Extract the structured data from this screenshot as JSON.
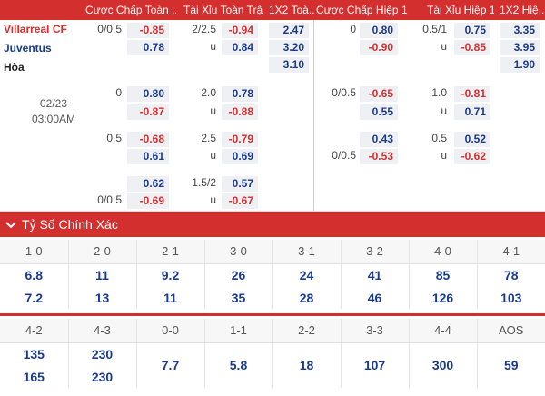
{
  "headers": [
    "Cược Chấp Toàn ...",
    "Tài Xỉu Toàn Trận",
    "1X2 Toà...",
    "Cược Chấp Hiệp 1",
    "Tài Xỉu Hiệp 1",
    "1X2 Hiệ..."
  ],
  "teams": {
    "home": "Villarreal CF",
    "away": "Juventus",
    "draw": "Hòa"
  },
  "date": "02/23",
  "time": "03:00AM",
  "rows": [
    {
      "ah_ft_line": "0/0.5",
      "ah_ft_v": "-0.85",
      "ou_ft_line": "2/2.5",
      "ou_ft_v": "-0.94",
      "x12_ft": "2.47",
      "ah_h1_line": "0",
      "ah_h1_v": "0.80",
      "ou_h1_line": "0.5/1",
      "ou_h1_v": "0.75",
      "x12_h1": "3.35"
    },
    {
      "ah_ft_v": "0.78",
      "ou_ft_line": "u",
      "ou_ft_v": "0.84",
      "x12_ft": "3.20",
      "ah_h1_v": "-0.90",
      "ou_h1_line": "u",
      "ou_h1_v": "-0.85",
      "x12_h1": "3.95"
    },
    {
      "x12_ft": "3.10",
      "x12_h1": "1.90"
    },
    {
      "ah_ft_line": "0",
      "ah_ft_v": "0.80",
      "ou_ft_line": "2.0",
      "ou_ft_v": "0.78",
      "ah_h1_line": "0/0.5",
      "ah_h1_v": "-0.65",
      "ou_h1_line": "1.0",
      "ou_h1_v": "-0.81"
    },
    {
      "ah_ft_v": "-0.87",
      "ou_ft_line": "u",
      "ou_ft_v": "-0.88",
      "ah_h1_v": "0.55",
      "ou_h1_line": "u",
      "ou_h1_v": "0.71"
    },
    {
      "ah_ft_line": "0.5",
      "ah_ft_v": "-0.68",
      "ou_ft_line": "2.5",
      "ou_ft_v": "-0.79",
      "ah_h1_v": "0.43",
      "ou_h1_line": "0.5",
      "ou_h1_v": "0.52"
    },
    {
      "ah_ft_v": "0.61",
      "ou_ft_line": "u",
      "ou_ft_v": "0.69",
      "ah_h1_line": "0/0.5",
      "ah_h1_v": "-0.53",
      "ou_h1_line": "u",
      "ou_h1_v": "-0.62"
    },
    {
      "ah_ft_v": "0.62",
      "ou_ft_line": "1.5/2",
      "ou_ft_v": "0.57"
    },
    {
      "ah_ft_line": "0/0.5",
      "ah_ft_v": "-0.69",
      "ou_ft_line": "u",
      "ou_ft_v": "-0.67"
    }
  ],
  "exact_score_title": "Tỷ Số Chính Xác",
  "scores_row1": [
    "1-0",
    "2-0",
    "2-1",
    "3-0",
    "3-1",
    "3-2",
    "4-0",
    "4-1"
  ],
  "values_row1_home": [
    "6.8",
    "11",
    "9.2",
    "26",
    "24",
    "41",
    "85",
    "78"
  ],
  "values_row1_away": [
    "7.2",
    "13",
    "11",
    "35",
    "28",
    "46",
    "126",
    "103"
  ],
  "scores_row2": [
    "4-2",
    "4-3",
    "0-0",
    "1-1",
    "2-2",
    "3-3",
    "4-4",
    "AOS"
  ],
  "values_row2_home": [
    "135",
    "230"
  ],
  "values_row2_away": [
    "165",
    "230"
  ],
  "values_row2_single": [
    "7.7",
    "5.8",
    "18",
    "107",
    "300",
    "59"
  ],
  "colors": {
    "accent": "#d32f2f",
    "negative": "#d32f2f",
    "positive": "#1a3a8a",
    "cell_bg": "#eef0f4"
  },
  "icons": {
    "collapse": "chevron-down-icon"
  }
}
